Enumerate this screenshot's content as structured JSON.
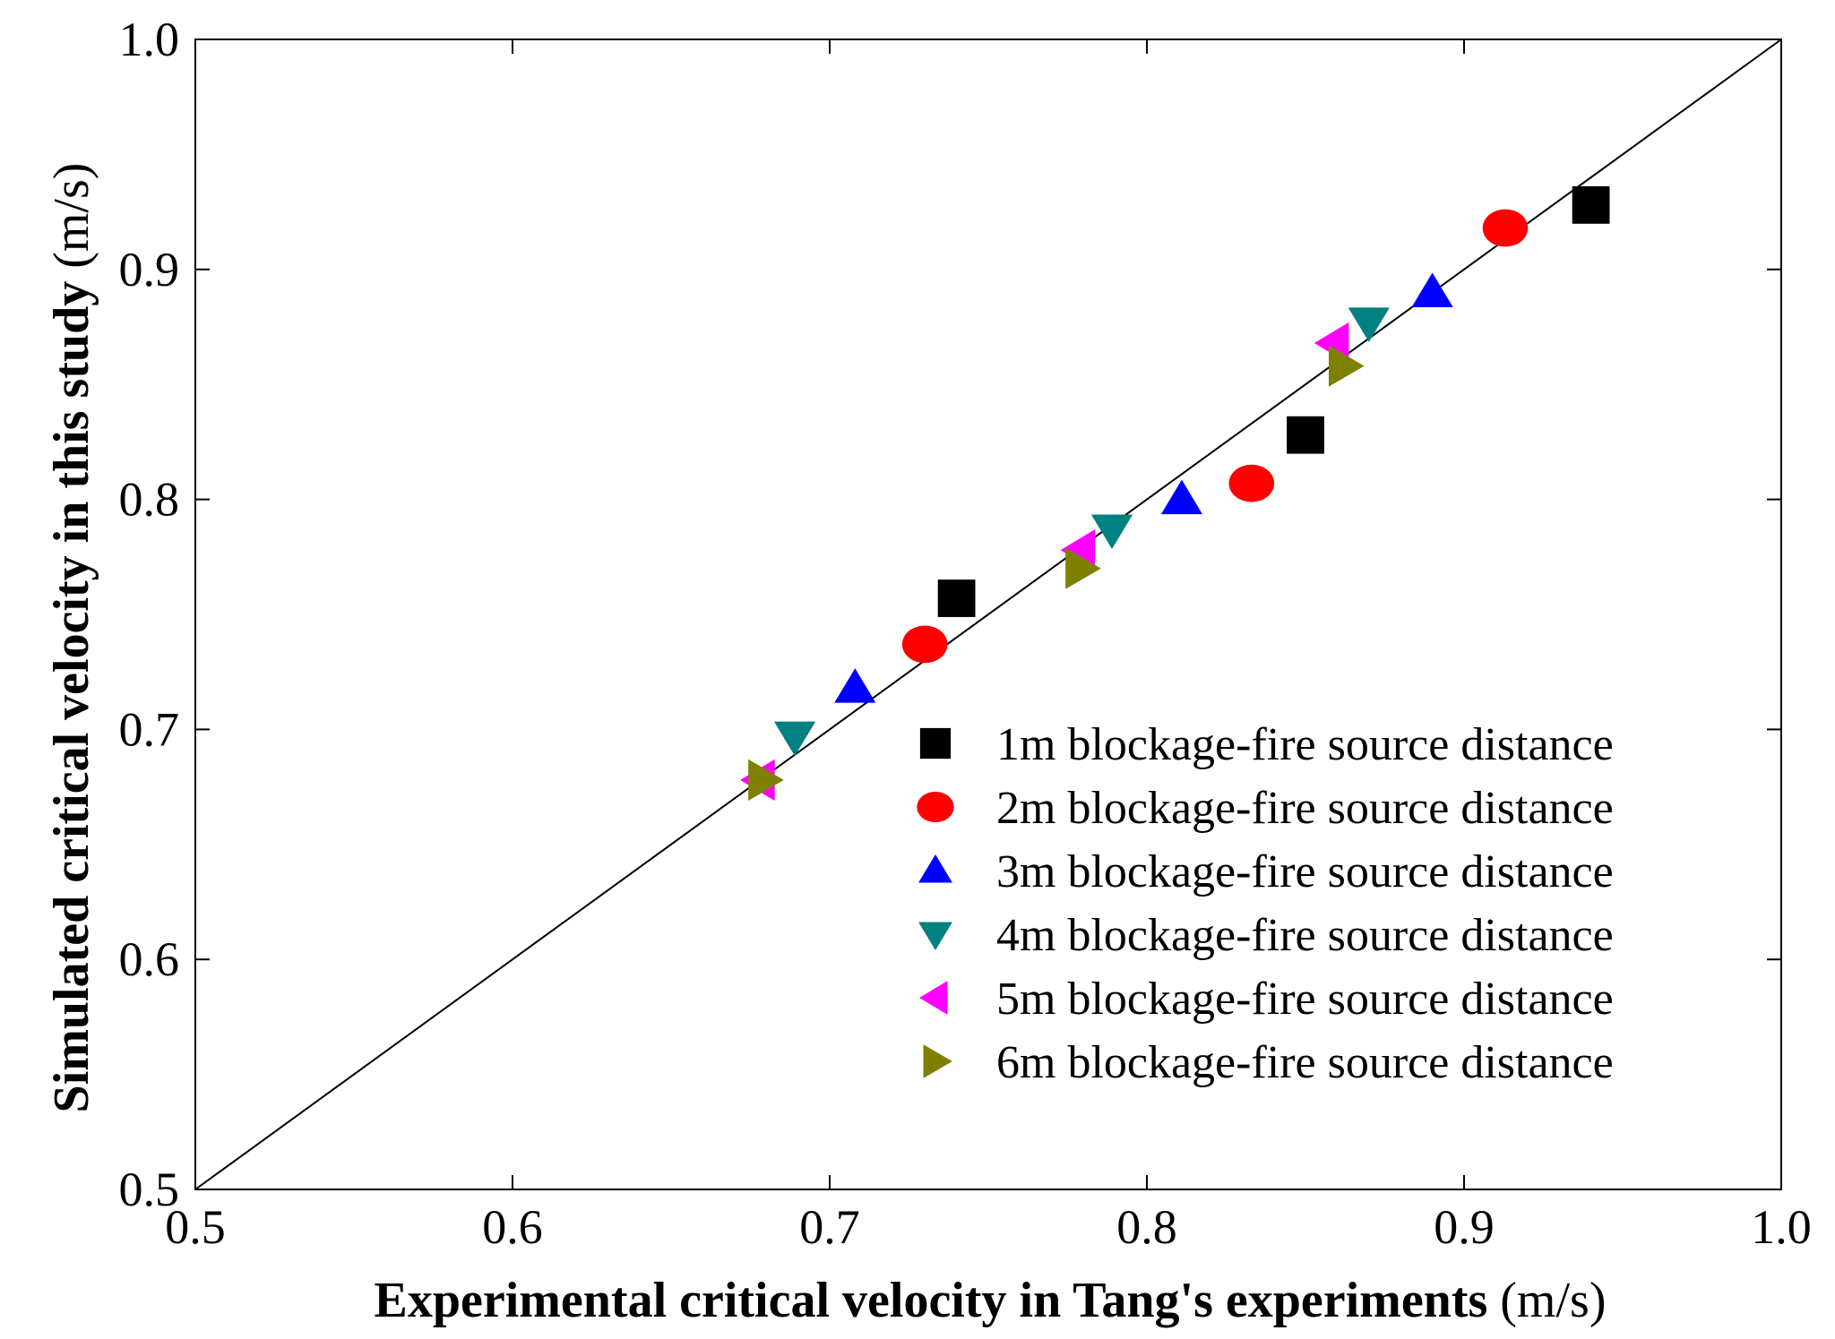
{
  "chart_data": {
    "type": "scatter",
    "title": "",
    "xlabel": {
      "bold": "Experimental critical velocity in Tang's experiments",
      "unit": " (m/s)"
    },
    "ylabel": {
      "bold": "Simulated critical velocity in this study",
      "unit": " (m/s)"
    },
    "xlim": [
      0.5,
      1.0
    ],
    "ylim": [
      0.5,
      1.0
    ],
    "xticks": [
      "0.5",
      "0.6",
      "0.7",
      "0.8",
      "0.9",
      "1.0"
    ],
    "yticks": [
      "0.5",
      "0.6",
      "0.7",
      "0.8",
      "0.9",
      "1.0"
    ],
    "grid": false,
    "legend_position": "lower-right",
    "reference_line": {
      "from": [
        0.5,
        0.5
      ],
      "to": [
        1.0,
        1.0
      ],
      "color": "#000000"
    },
    "series": [
      {
        "name": "1m blockage-fire source distance",
        "marker": "square",
        "color": "#000000",
        "points": [
          [
            0.74,
            0.757
          ],
          [
            0.85,
            0.828
          ],
          [
            0.94,
            0.928
          ]
        ]
      },
      {
        "name": "2m blockage-fire source distance",
        "marker": "circle",
        "color": "#ff0000",
        "points": [
          [
            0.73,
            0.737
          ],
          [
            0.833,
            0.807
          ],
          [
            0.913,
            0.918
          ]
        ]
      },
      {
        "name": "3m blockage-fire source distance",
        "marker": "triangle-up",
        "color": "#0000ff",
        "points": [
          [
            0.708,
            0.718
          ],
          [
            0.811,
            0.8
          ],
          [
            0.89,
            0.89
          ]
        ]
      },
      {
        "name": "4m blockage-fire source distance",
        "marker": "triangle-down",
        "color": "#008080",
        "points": [
          [
            0.689,
            0.697
          ],
          [
            0.789,
            0.787
          ],
          [
            0.87,
            0.877
          ]
        ]
      },
      {
        "name": "5m blockage-fire source distance",
        "marker": "triangle-left",
        "color": "#ff00ff",
        "points": [
          [
            0.678,
            0.678
          ],
          [
            0.779,
            0.778
          ],
          [
            0.859,
            0.868
          ]
        ]
      },
      {
        "name": "6m blockage-fire source distance",
        "marker": "triangle-right",
        "color": "#808000",
        "points": [
          [
            0.679,
            0.678
          ],
          [
            0.779,
            0.77
          ],
          [
            0.862,
            0.858
          ]
        ]
      }
    ]
  }
}
